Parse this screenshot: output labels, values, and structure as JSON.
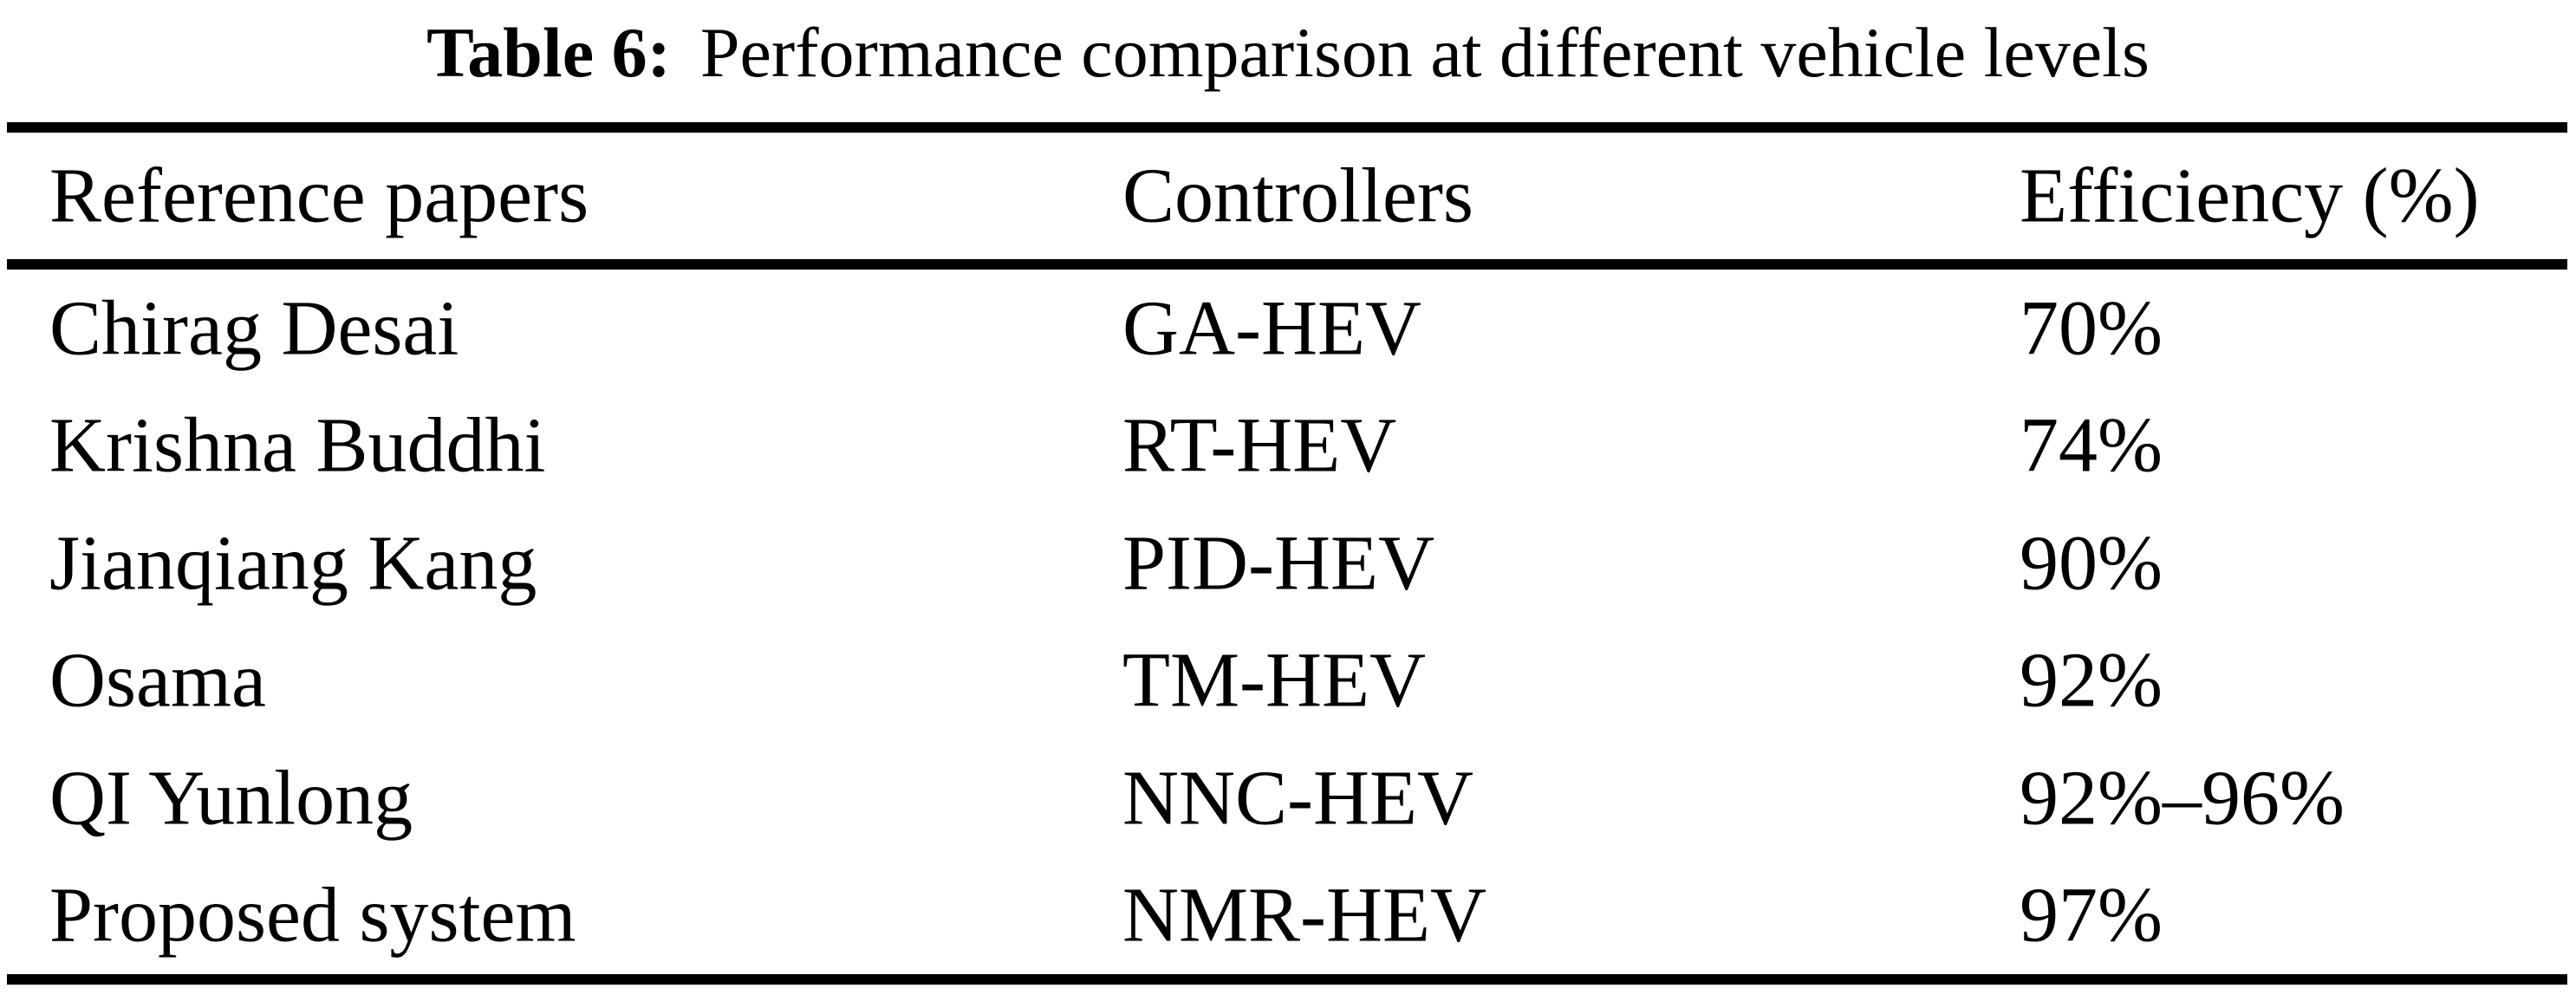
{
  "table": {
    "caption": {
      "label": "Table 6:",
      "text": "Performance comparison at different vehicle levels"
    },
    "columns": {
      "reference": "Reference papers",
      "controller": "Controllers",
      "efficiency": "Efficiency (%)"
    },
    "rows": [
      {
        "reference": "Chirag Desai",
        "controller": "GA-HEV",
        "efficiency": "70%"
      },
      {
        "reference": "Krishna Buddhi",
        "controller": "RT-HEV",
        "efficiency": "74%"
      },
      {
        "reference": "Jianqiang Kang",
        "controller": "PID-HEV",
        "efficiency": "90%"
      },
      {
        "reference": "Osama",
        "controller": "TM-HEV",
        "efficiency": "92%"
      },
      {
        "reference": "QI Yunlong",
        "controller": "NNC-HEV",
        "efficiency": "92%–96%"
      },
      {
        "reference": "Proposed system",
        "controller": "NMR-HEV",
        "efficiency": "97%"
      }
    ],
    "colors": {
      "text": "#000000",
      "background": "#ffffff",
      "rule": "#000000"
    }
  },
  "chart_data": {
    "type": "table",
    "title": "Table 6: Performance comparison at different vehicle levels",
    "columns": [
      "Reference papers",
      "Controllers",
      "Efficiency (%)"
    ],
    "rows": [
      [
        "Chirag Desai",
        "GA-HEV",
        "70%"
      ],
      [
        "Krishna Buddhi",
        "RT-HEV",
        "74%"
      ],
      [
        "Jianqiang Kang",
        "PID-HEV",
        "90%"
      ],
      [
        "Osama",
        "TM-HEV",
        "92%"
      ],
      [
        "QI Yunlong",
        "NNC-HEV",
        "92%–96%"
      ],
      [
        "Proposed system",
        "NMR-HEV",
        "97%"
      ]
    ]
  }
}
